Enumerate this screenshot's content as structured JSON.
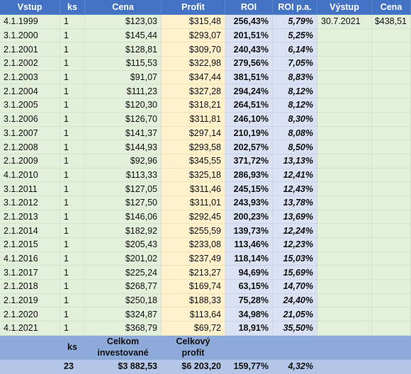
{
  "table": {
    "header": [
      "Vstup",
      "ks",
      "Cena",
      "Profit",
      "ROI",
      "ROI p.a.",
      "Výstup",
      "Cena"
    ],
    "rows": [
      [
        "4.1.1999",
        "1",
        "$123,03",
        "$315,48",
        "256,43%",
        "5,79%",
        "30.7.2021",
        "$438,51"
      ],
      [
        "3.1.2000",
        "1",
        "$145,44",
        "$293,07",
        "201,51%",
        "5,25%"
      ],
      [
        "2.1.2001",
        "1",
        "$128,81",
        "$309,70",
        "240,43%",
        "6,14%"
      ],
      [
        "2.1.2002",
        "1",
        "$115,53",
        "$322,98",
        "279,56%",
        "7,05%"
      ],
      [
        "2.1.2003",
        "1",
        "$91,07",
        "$347,44",
        "381,51%",
        "8,83%"
      ],
      [
        "2.1.2004",
        "1",
        "$111,23",
        "$327,28",
        "294,24%",
        "8,12%"
      ],
      [
        "3.1.2005",
        "1",
        "$120,30",
        "$318,21",
        "264,51%",
        "8,12%"
      ],
      [
        "3.1.2006",
        "1",
        "$126,70",
        "$311,81",
        "246,10%",
        "8,30%"
      ],
      [
        "3.1.2007",
        "1",
        "$141,37",
        "$297,14",
        "210,19%",
        "8,08%"
      ],
      [
        "2.1.2008",
        "1",
        "$144,93",
        "$293,58",
        "202,57%",
        "8,50%"
      ],
      [
        "2.1.2009",
        "1",
        "$92,96",
        "$345,55",
        "371,72%",
        "13,13%"
      ],
      [
        "4.1.2010",
        "1",
        "$113,33",
        "$325,18",
        "286,93%",
        "12,41%"
      ],
      [
        "3.1.2011",
        "1",
        "$127,05",
        "$311,46",
        "245,15%",
        "12,43%"
      ],
      [
        "3.1.2012",
        "1",
        "$127,50",
        "$311,01",
        "243,93%",
        "13,78%"
      ],
      [
        "2.1.2013",
        "1",
        "$146,06",
        "$292,45",
        "200,23%",
        "13,69%"
      ],
      [
        "2.1.2014",
        "1",
        "$182,92",
        "$255,59",
        "139,73%",
        "12,24%"
      ],
      [
        "2.1.2015",
        "1",
        "$205,43",
        "$233,08",
        "113,46%",
        "12,23%"
      ],
      [
        "4.1.2016",
        "1",
        "$201,02",
        "$237,49",
        "118,14%",
        "15,03%"
      ],
      [
        "3.1.2017",
        "1",
        "$225,24",
        "$213,27",
        "94,69%",
        "15,69%"
      ],
      [
        "2.1.2018",
        "1",
        "$268,77",
        "$169,74",
        "63,15%",
        "14,70%"
      ],
      [
        "2.1.2019",
        "1",
        "$250,18",
        "$188,33",
        "75,28%",
        "24,40%"
      ],
      [
        "2.1.2020",
        "1",
        "$324,87",
        "$113,64",
        "34,98%",
        "21,05%"
      ],
      [
        "4.1.2021",
        "1",
        "$368,79",
        "$69,72",
        "18,91%",
        "35,50%"
      ]
    ],
    "summary": {
      "header": [
        "ks",
        "Celkom investované",
        "Celkový profit"
      ],
      "values": [
        "23",
        "$3 882,53",
        "$6 203,20",
        "159,77%",
        "4,32%"
      ]
    }
  }
}
